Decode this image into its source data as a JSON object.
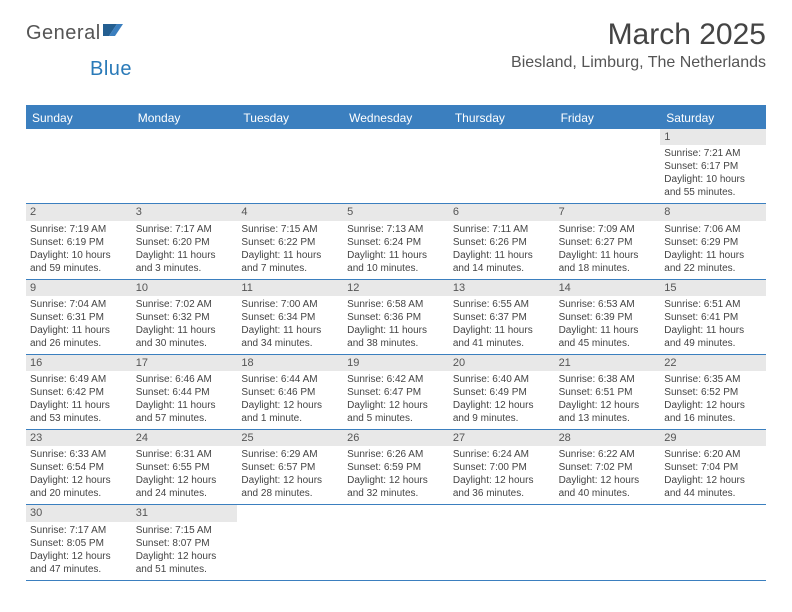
{
  "logo": {
    "text1": "General",
    "text2": "Blue"
  },
  "title": "March 2025",
  "location": "Biesland, Limburg, The Netherlands",
  "colors": {
    "header_bg": "#3b7fbf",
    "border": "#3b7fbf",
    "daynum_bg": "#e8e8e8"
  },
  "days_of_week": [
    "Sunday",
    "Monday",
    "Tuesday",
    "Wednesday",
    "Thursday",
    "Friday",
    "Saturday"
  ],
  "weeks": [
    [
      {
        "n": "",
        "empty": true,
        "sunrise": "",
        "sunset": "",
        "daylight": ""
      },
      {
        "n": "",
        "empty": true,
        "sunrise": "",
        "sunset": "",
        "daylight": ""
      },
      {
        "n": "",
        "empty": true,
        "sunrise": "",
        "sunset": "",
        "daylight": ""
      },
      {
        "n": "",
        "empty": true,
        "sunrise": "",
        "sunset": "",
        "daylight": ""
      },
      {
        "n": "",
        "empty": true,
        "sunrise": "",
        "sunset": "",
        "daylight": ""
      },
      {
        "n": "",
        "empty": true,
        "sunrise": "",
        "sunset": "",
        "daylight": ""
      },
      {
        "n": "1",
        "sunrise": "Sunrise: 7:21 AM",
        "sunset": "Sunset: 6:17 PM",
        "daylight": "Daylight: 10 hours and 55 minutes."
      }
    ],
    [
      {
        "n": "2",
        "sunrise": "Sunrise: 7:19 AM",
        "sunset": "Sunset: 6:19 PM",
        "daylight": "Daylight: 10 hours and 59 minutes."
      },
      {
        "n": "3",
        "sunrise": "Sunrise: 7:17 AM",
        "sunset": "Sunset: 6:20 PM",
        "daylight": "Daylight: 11 hours and 3 minutes."
      },
      {
        "n": "4",
        "sunrise": "Sunrise: 7:15 AM",
        "sunset": "Sunset: 6:22 PM",
        "daylight": "Daylight: 11 hours and 7 minutes."
      },
      {
        "n": "5",
        "sunrise": "Sunrise: 7:13 AM",
        "sunset": "Sunset: 6:24 PM",
        "daylight": "Daylight: 11 hours and 10 minutes."
      },
      {
        "n": "6",
        "sunrise": "Sunrise: 7:11 AM",
        "sunset": "Sunset: 6:26 PM",
        "daylight": "Daylight: 11 hours and 14 minutes."
      },
      {
        "n": "7",
        "sunrise": "Sunrise: 7:09 AM",
        "sunset": "Sunset: 6:27 PM",
        "daylight": "Daylight: 11 hours and 18 minutes."
      },
      {
        "n": "8",
        "sunrise": "Sunrise: 7:06 AM",
        "sunset": "Sunset: 6:29 PM",
        "daylight": "Daylight: 11 hours and 22 minutes."
      }
    ],
    [
      {
        "n": "9",
        "sunrise": "Sunrise: 7:04 AM",
        "sunset": "Sunset: 6:31 PM",
        "daylight": "Daylight: 11 hours and 26 minutes."
      },
      {
        "n": "10",
        "sunrise": "Sunrise: 7:02 AM",
        "sunset": "Sunset: 6:32 PM",
        "daylight": "Daylight: 11 hours and 30 minutes."
      },
      {
        "n": "11",
        "sunrise": "Sunrise: 7:00 AM",
        "sunset": "Sunset: 6:34 PM",
        "daylight": "Daylight: 11 hours and 34 minutes."
      },
      {
        "n": "12",
        "sunrise": "Sunrise: 6:58 AM",
        "sunset": "Sunset: 6:36 PM",
        "daylight": "Daylight: 11 hours and 38 minutes."
      },
      {
        "n": "13",
        "sunrise": "Sunrise: 6:55 AM",
        "sunset": "Sunset: 6:37 PM",
        "daylight": "Daylight: 11 hours and 41 minutes."
      },
      {
        "n": "14",
        "sunrise": "Sunrise: 6:53 AM",
        "sunset": "Sunset: 6:39 PM",
        "daylight": "Daylight: 11 hours and 45 minutes."
      },
      {
        "n": "15",
        "sunrise": "Sunrise: 6:51 AM",
        "sunset": "Sunset: 6:41 PM",
        "daylight": "Daylight: 11 hours and 49 minutes."
      }
    ],
    [
      {
        "n": "16",
        "sunrise": "Sunrise: 6:49 AM",
        "sunset": "Sunset: 6:42 PM",
        "daylight": "Daylight: 11 hours and 53 minutes."
      },
      {
        "n": "17",
        "sunrise": "Sunrise: 6:46 AM",
        "sunset": "Sunset: 6:44 PM",
        "daylight": "Daylight: 11 hours and 57 minutes."
      },
      {
        "n": "18",
        "sunrise": "Sunrise: 6:44 AM",
        "sunset": "Sunset: 6:46 PM",
        "daylight": "Daylight: 12 hours and 1 minute."
      },
      {
        "n": "19",
        "sunrise": "Sunrise: 6:42 AM",
        "sunset": "Sunset: 6:47 PM",
        "daylight": "Daylight: 12 hours and 5 minutes."
      },
      {
        "n": "20",
        "sunrise": "Sunrise: 6:40 AM",
        "sunset": "Sunset: 6:49 PM",
        "daylight": "Daylight: 12 hours and 9 minutes."
      },
      {
        "n": "21",
        "sunrise": "Sunrise: 6:38 AM",
        "sunset": "Sunset: 6:51 PM",
        "daylight": "Daylight: 12 hours and 13 minutes."
      },
      {
        "n": "22",
        "sunrise": "Sunrise: 6:35 AM",
        "sunset": "Sunset: 6:52 PM",
        "daylight": "Daylight: 12 hours and 16 minutes."
      }
    ],
    [
      {
        "n": "23",
        "sunrise": "Sunrise: 6:33 AM",
        "sunset": "Sunset: 6:54 PM",
        "daylight": "Daylight: 12 hours and 20 minutes."
      },
      {
        "n": "24",
        "sunrise": "Sunrise: 6:31 AM",
        "sunset": "Sunset: 6:55 PM",
        "daylight": "Daylight: 12 hours and 24 minutes."
      },
      {
        "n": "25",
        "sunrise": "Sunrise: 6:29 AM",
        "sunset": "Sunset: 6:57 PM",
        "daylight": "Daylight: 12 hours and 28 minutes."
      },
      {
        "n": "26",
        "sunrise": "Sunrise: 6:26 AM",
        "sunset": "Sunset: 6:59 PM",
        "daylight": "Daylight: 12 hours and 32 minutes."
      },
      {
        "n": "27",
        "sunrise": "Sunrise: 6:24 AM",
        "sunset": "Sunset: 7:00 PM",
        "daylight": "Daylight: 12 hours and 36 minutes."
      },
      {
        "n": "28",
        "sunrise": "Sunrise: 6:22 AM",
        "sunset": "Sunset: 7:02 PM",
        "daylight": "Daylight: 12 hours and 40 minutes."
      },
      {
        "n": "29",
        "sunrise": "Sunrise: 6:20 AM",
        "sunset": "Sunset: 7:04 PM",
        "daylight": "Daylight: 12 hours and 44 minutes."
      }
    ],
    [
      {
        "n": "30",
        "sunrise": "Sunrise: 7:17 AM",
        "sunset": "Sunset: 8:05 PM",
        "daylight": "Daylight: 12 hours and 47 minutes."
      },
      {
        "n": "31",
        "sunrise": "Sunrise: 7:15 AM",
        "sunset": "Sunset: 8:07 PM",
        "daylight": "Daylight: 12 hours and 51 minutes."
      },
      {
        "n": "",
        "empty": true,
        "sunrise": "",
        "sunset": "",
        "daylight": ""
      },
      {
        "n": "",
        "empty": true,
        "sunrise": "",
        "sunset": "",
        "daylight": ""
      },
      {
        "n": "",
        "empty": true,
        "sunrise": "",
        "sunset": "",
        "daylight": ""
      },
      {
        "n": "",
        "empty": true,
        "sunrise": "",
        "sunset": "",
        "daylight": ""
      },
      {
        "n": "",
        "empty": true,
        "sunrise": "",
        "sunset": "",
        "daylight": ""
      }
    ]
  ]
}
